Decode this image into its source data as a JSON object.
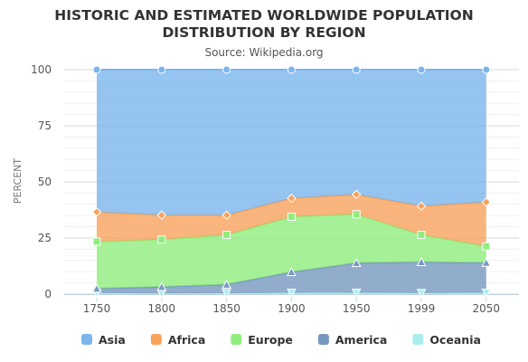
{
  "chart_data": {
    "type": "area",
    "stacking": "percent",
    "title": "HISTORIC AND ESTIMATED WORLDWIDE POPULATION DISTRIBUTION BY REGION",
    "title_lines": [
      "HISTORIC AND ESTIMATED WORLDWIDE POPULATION",
      "DISTRIBUTION BY REGION"
    ],
    "subtitle": "Source: Wikipedia.org",
    "xlabel": "",
    "ylabel": "PERCENT",
    "categories": [
      "1750",
      "1800",
      "1850",
      "1900",
      "1950",
      "1999",
      "2050"
    ],
    "ylim": [
      0,
      100
    ],
    "yticks": [
      0,
      25,
      50,
      75,
      100
    ],
    "grid": true,
    "legend_position": "bottom",
    "series": [
      {
        "name": "Asia",
        "color": "#7cb5ec",
        "marker": "circle",
        "values": [
          63.4,
          64.8,
          64.8,
          57.3,
          55.6,
          60.8,
          59.0
        ]
      },
      {
        "name": "Africa",
        "color": "#f7a35c",
        "marker": "diamond",
        "values": [
          13.2,
          10.9,
          8.8,
          8.2,
          8.8,
          12.8,
          19.7
        ]
      },
      {
        "name": "Europe",
        "color": "#90ed7d",
        "marker": "square",
        "values": [
          20.9,
          21.0,
          22.1,
          24.6,
          21.7,
          12.1,
          7.3
        ]
      },
      {
        "name": "America",
        "color": "#7798bf",
        "marker": "triangle",
        "values": [
          2.0,
          3.0,
          3.9,
          9.3,
          13.3,
          13.8,
          13.4
        ]
      },
      {
        "name": "Oceania",
        "color": "#aaeeee",
        "marker": "triangle-down",
        "values": [
          0.5,
          0.3,
          0.4,
          0.6,
          0.6,
          0.5,
          0.6
        ]
      }
    ]
  }
}
